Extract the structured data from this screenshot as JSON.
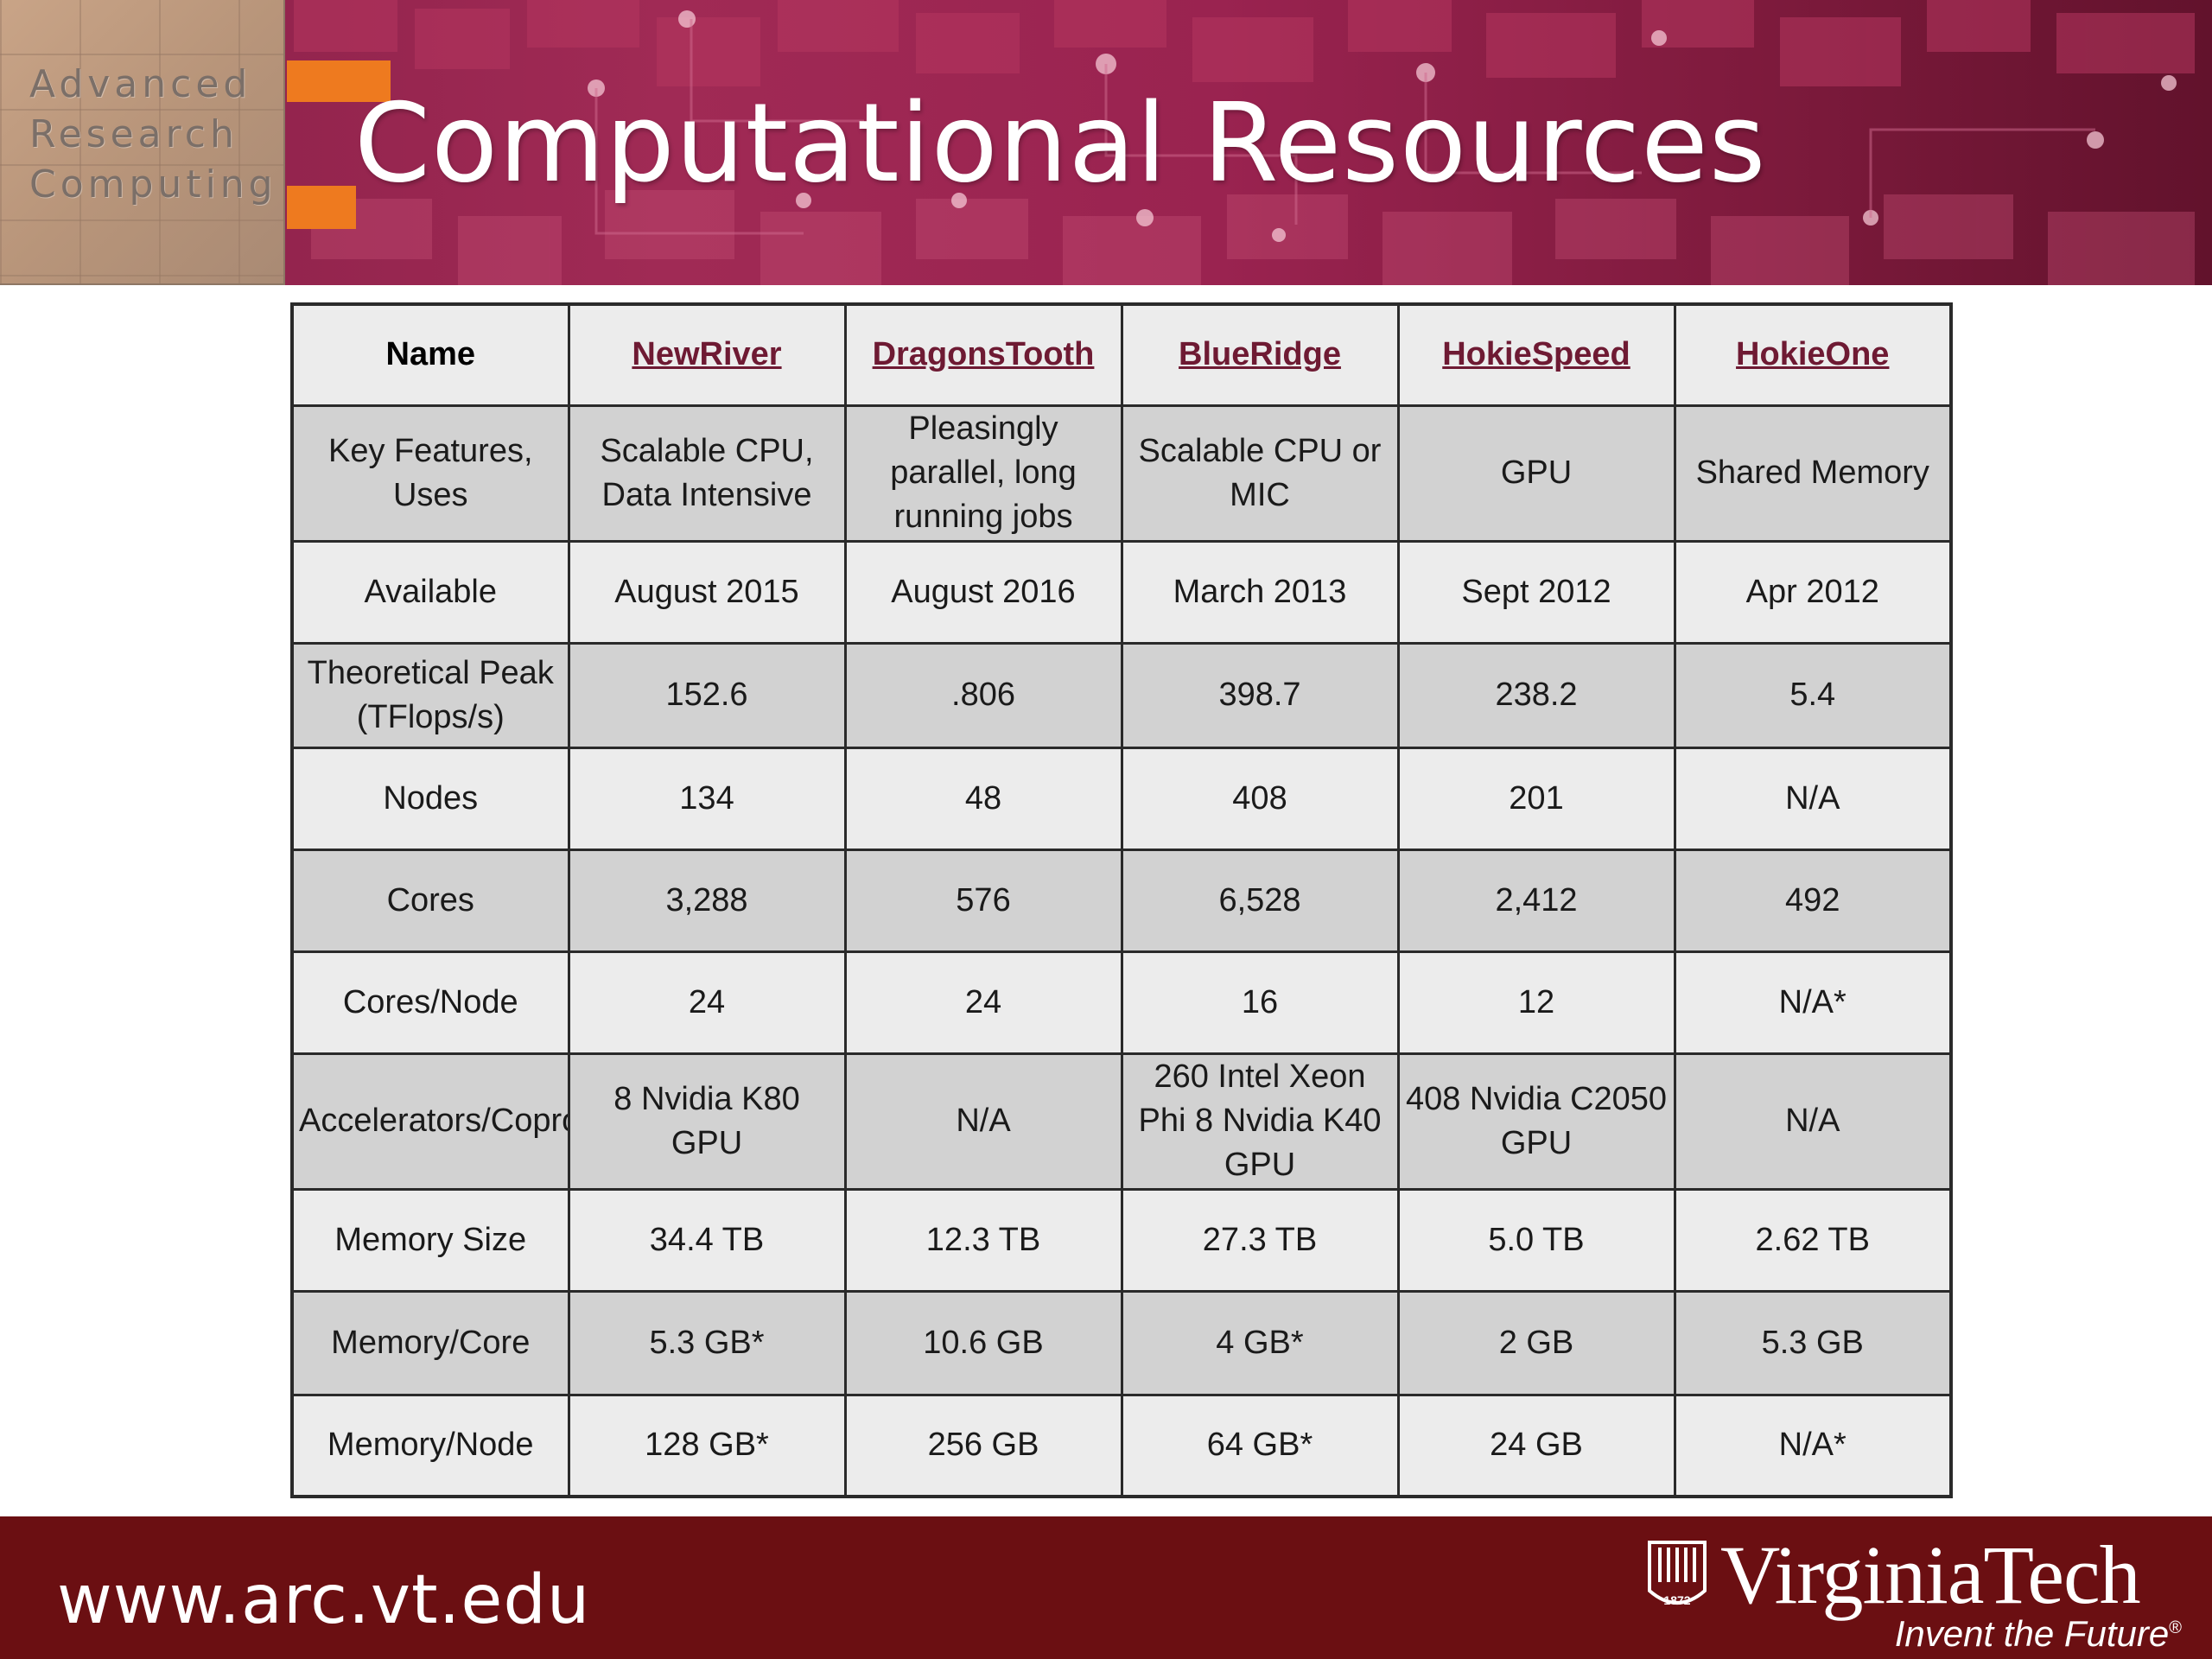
{
  "header": {
    "logo_lines": [
      "Advanced",
      "Research",
      "Computing"
    ],
    "title": "Computational Resources",
    "colors": {
      "banner": "#8a2048",
      "title": "#ffffff"
    }
  },
  "table": {
    "columns": [
      "Name",
      "NewRiver",
      "DragonsTooth",
      "BlueRidge",
      "HokieSpeed",
      "HokieOne"
    ],
    "rows": [
      {
        "label": "Key Features, Uses",
        "values": [
          "Scalable CPU, Data Intensive",
          "Pleasingly parallel, long running jobs",
          "Scalable CPU or MIC",
          "GPU",
          "Shared Memory"
        ]
      },
      {
        "label": "Available",
        "values": [
          "August 2015",
          "August 2016",
          "March 2013",
          "Sept 2012",
          "Apr 2012"
        ]
      },
      {
        "label": "Theoretical Peak (TFlops/s)",
        "values": [
          "152.6",
          ".806",
          "398.7",
          "238.2",
          "5.4"
        ]
      },
      {
        "label": "Nodes",
        "values": [
          "134",
          "48",
          "408",
          "201",
          "N/A"
        ]
      },
      {
        "label": "Cores",
        "values": [
          "3,288",
          "576",
          "6,528",
          "2,412",
          "492"
        ]
      },
      {
        "label": "Cores/Node",
        "values": [
          "24",
          "24",
          "16",
          "12",
          "N/A*"
        ]
      },
      {
        "label": "Accelerators/Coprocessors",
        "values": [
          "8 Nvidia K80 GPU",
          "N/A",
          "260 Intel Xeon Phi 8 Nvidia K40 GPU",
          "408 Nvidia C2050 GPU",
          "N/A"
        ]
      },
      {
        "label": "Memory Size",
        "values": [
          "34.4 TB",
          "12.3 TB",
          "27.3 TB",
          "5.0 TB",
          "2.62 TB"
        ]
      },
      {
        "label": "Memory/Core",
        "values": [
          "5.3 GB*",
          "10.6 GB",
          "4 GB*",
          "2 GB",
          "5.3 GB"
        ]
      },
      {
        "label": "Memory/Node",
        "values": [
          "128 GB*",
          "256 GB",
          "64 GB*",
          "24 GB",
          "N/A*"
        ]
      }
    ],
    "colors": {
      "link": "#6e1a33",
      "row_light": "#ececec",
      "row_dark": "#d2d2d2",
      "border": "#2a2a2a"
    }
  },
  "footer": {
    "url": "www.arc.vt.edu",
    "brand": "VirginiaTech",
    "brand_year": "1872",
    "tagline": "Invent the Future",
    "tagline_mark": "®",
    "colors": {
      "background": "#6b0f12",
      "text": "#ffffff"
    }
  }
}
